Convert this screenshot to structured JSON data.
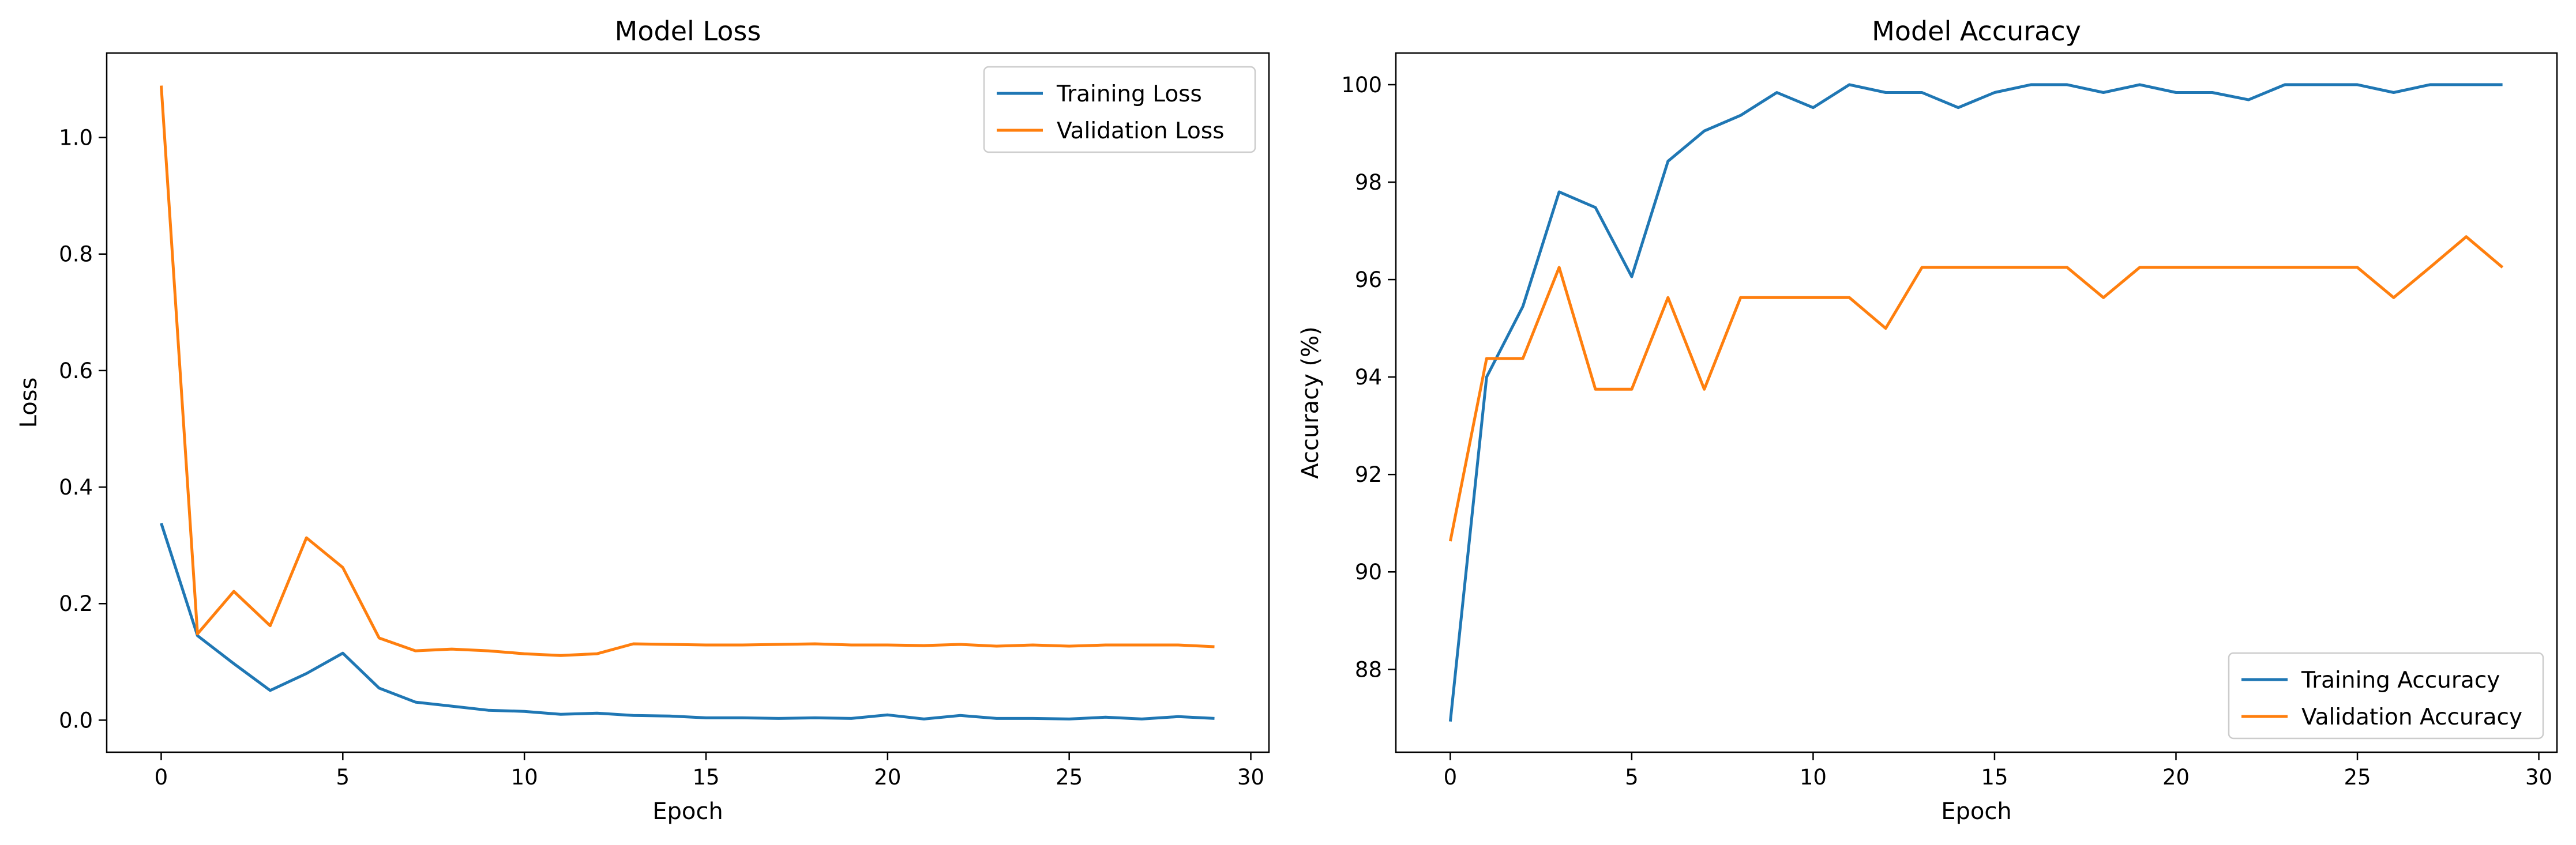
{
  "figure": {
    "colors": {
      "training": "#1f77b4",
      "validation": "#ff7f0e"
    }
  },
  "chart_data": [
    {
      "type": "line",
      "title": "Model Loss",
      "xlabel": "Epoch",
      "ylabel": "Loss",
      "xlim": [
        -1.5,
        30.5
      ],
      "ylim": [
        -0.055,
        1.145
      ],
      "xticks": [
        0,
        5,
        10,
        15,
        20,
        25,
        30
      ],
      "yticks": [
        0.0,
        0.2,
        0.4,
        0.6,
        0.8,
        1.0
      ],
      "ytick_decimals": 1,
      "grid": false,
      "legend_position": "top-right",
      "x": [
        0,
        1,
        2,
        3,
        4,
        5,
        6,
        7,
        8,
        9,
        10,
        11,
        12,
        13,
        14,
        15,
        16,
        17,
        18,
        19,
        20,
        21,
        22,
        23,
        24,
        25,
        26,
        27,
        28,
        29
      ],
      "series": [
        {
          "name": "Training Loss",
          "color": "#1f77b4",
          "values": [
            0.338,
            0.145,
            0.097,
            0.051,
            0.08,
            0.115,
            0.055,
            0.031,
            0.024,
            0.017,
            0.015,
            0.01,
            0.012,
            0.008,
            0.007,
            0.004,
            0.004,
            0.003,
            0.004,
            0.003,
            0.009,
            0.002,
            0.008,
            0.003,
            0.003,
            0.002,
            0.005,
            0.002,
            0.006,
            0.003
          ]
        },
        {
          "name": "Validation Loss",
          "color": "#ff7f0e",
          "values": [
            1.089,
            0.148,
            0.221,
            0.162,
            0.313,
            0.262,
            0.141,
            0.119,
            0.122,
            0.119,
            0.114,
            0.111,
            0.114,
            0.131,
            0.13,
            0.129,
            0.129,
            0.13,
            0.131,
            0.129,
            0.129,
            0.128,
            0.13,
            0.127,
            0.129,
            0.127,
            0.129,
            0.129,
            0.129,
            0.126
          ]
        }
      ]
    },
    {
      "type": "line",
      "title": "Model Accuracy",
      "xlabel": "Epoch",
      "ylabel": "Accuracy (%)",
      "xlim": [
        -1.5,
        30.5
      ],
      "ylim": [
        86.3,
        100.65
      ],
      "xticks": [
        0,
        5,
        10,
        15,
        20,
        25,
        30
      ],
      "yticks": [
        88,
        90,
        92,
        94,
        96,
        98,
        100
      ],
      "ytick_decimals": 0,
      "grid": false,
      "legend_position": "bottom-right",
      "x": [
        0,
        1,
        2,
        3,
        4,
        5,
        6,
        7,
        8,
        9,
        10,
        11,
        12,
        13,
        14,
        15,
        16,
        17,
        18,
        19,
        20,
        21,
        22,
        23,
        24,
        25,
        26,
        27,
        28,
        29
      ],
      "series": [
        {
          "name": "Training Accuracy",
          "color": "#1f77b4",
          "values": [
            86.93,
            94.0,
            95.45,
            97.8,
            97.48,
            96.06,
            98.43,
            99.05,
            99.37,
            99.84,
            99.53,
            100.0,
            99.84,
            99.84,
            99.53,
            99.84,
            100.0,
            100.0,
            99.84,
            100.0,
            99.84,
            99.84,
            99.69,
            100.0,
            100.0,
            100.0,
            99.84,
            100.0,
            100.0,
            100.0
          ]
        },
        {
          "name": "Validation Accuracy",
          "color": "#ff7f0e",
          "values": [
            90.63,
            94.38,
            94.38,
            96.25,
            93.75,
            93.75,
            95.63,
            93.75,
            95.63,
            95.63,
            95.63,
            95.63,
            95.0,
            96.25,
            96.25,
            96.25,
            96.25,
            96.25,
            95.63,
            96.25,
            96.25,
            96.25,
            96.25,
            96.25,
            96.25,
            96.25,
            95.63,
            96.25,
            96.88,
            96.25
          ]
        }
      ]
    }
  ]
}
